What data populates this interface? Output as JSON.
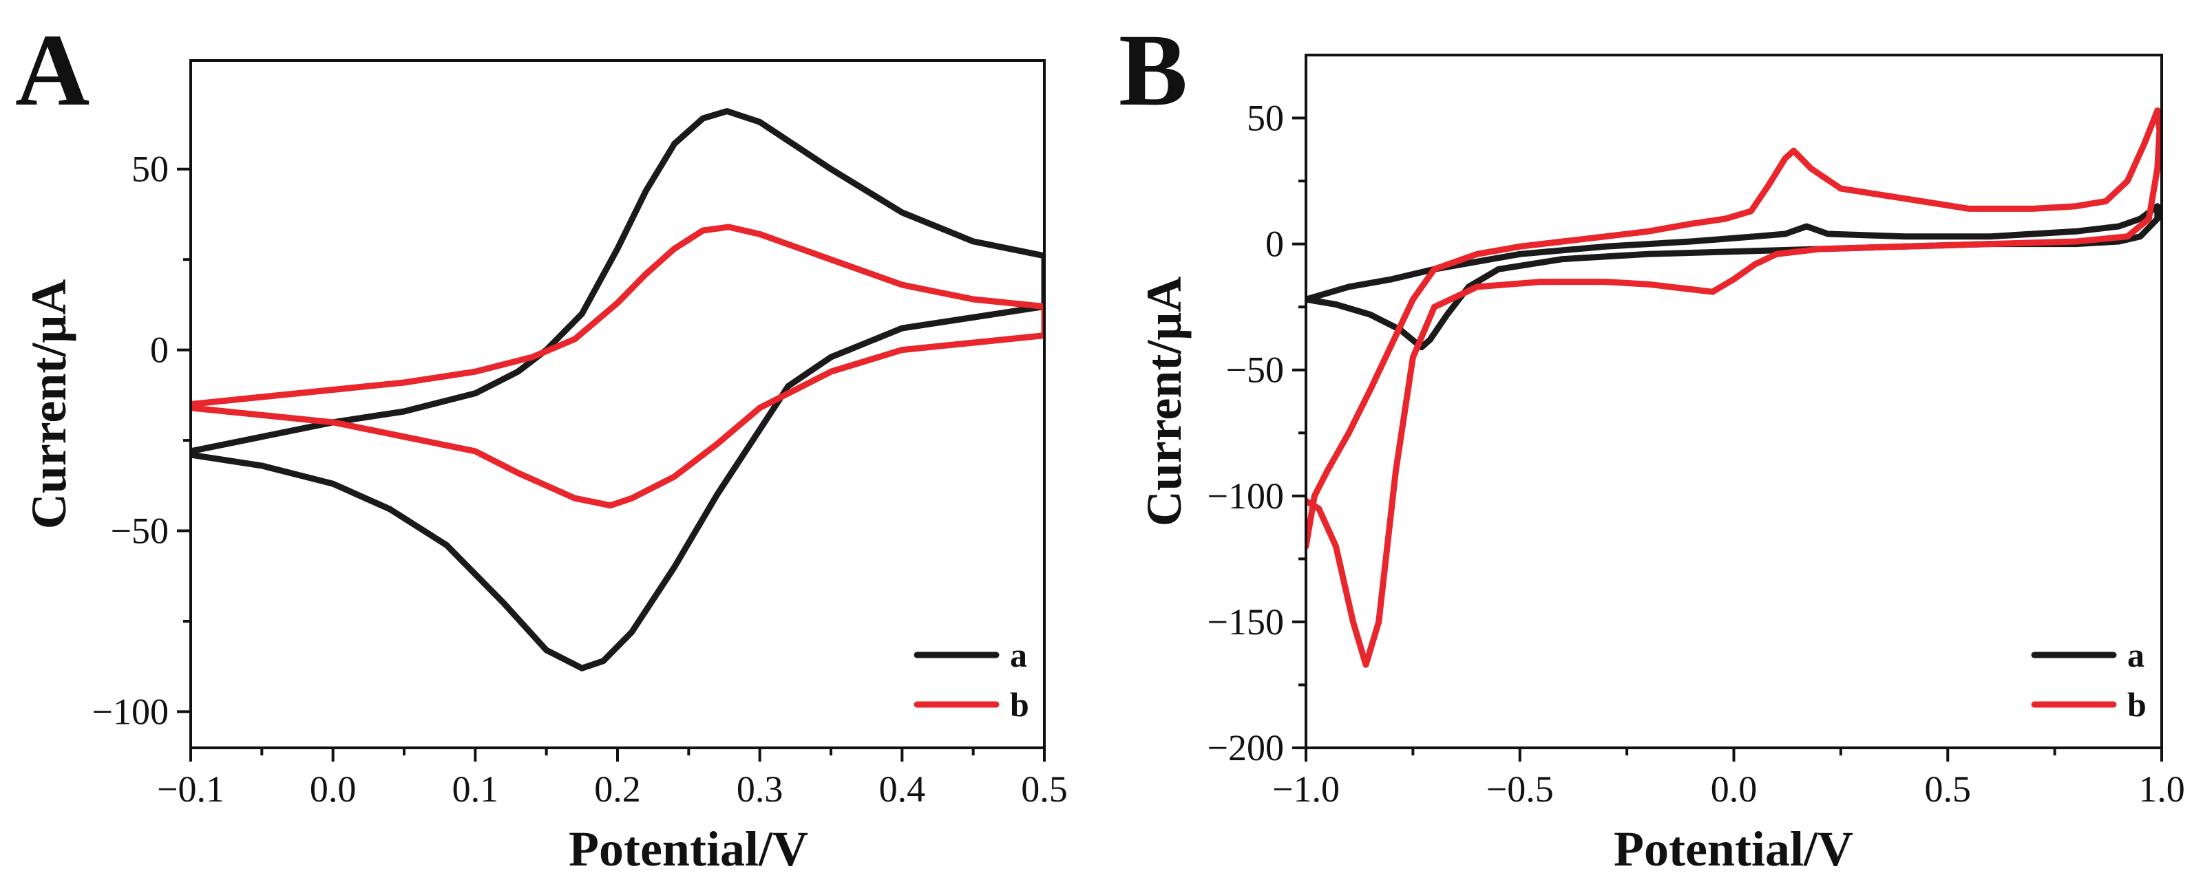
{
  "chart_data": [
    {
      "type": "line",
      "panel": "A",
      "title": "",
      "xlabel": "Potential/V",
      "ylabel": "Current/μA",
      "xlim": [
        -0.1,
        0.5
      ],
      "ylim": [
        -110,
        80
      ],
      "xticks": [
        -0.1,
        0.0,
        0.1,
        0.2,
        0.3,
        0.4,
        0.5
      ],
      "xtick_labels": [
        "−0.1",
        "0.0",
        "0.1",
        "0.2",
        "0.3",
        "0.4",
        "0.5"
      ],
      "yticks": [
        -100,
        -50,
        0,
        50
      ],
      "ytick_labels": [
        "−100",
        "−50",
        "0",
        "50"
      ],
      "legend": {
        "position": "bottom-right",
        "entries": [
          "a",
          "b"
        ]
      },
      "colors": {
        "a": "#1a1a1a",
        "b": "#e8262b"
      },
      "series": [
        {
          "name": "a",
          "points": [
            [
              -0.1,
              -28
            ],
            [
              0.0,
              -20
            ],
            [
              0.05,
              -17
            ],
            [
              0.1,
              -12
            ],
            [
              0.13,
              -6
            ],
            [
              0.15,
              0
            ],
            [
              0.175,
              10
            ],
            [
              0.2,
              28
            ],
            [
              0.22,
              44
            ],
            [
              0.24,
              57
            ],
            [
              0.26,
              64
            ],
            [
              0.277,
              66
            ],
            [
              0.3,
              63
            ],
            [
              0.35,
              50
            ],
            [
              0.4,
              38
            ],
            [
              0.45,
              30
            ],
            [
              0.5,
              26
            ],
            [
              0.5,
              12
            ],
            [
              0.45,
              9
            ],
            [
              0.4,
              6
            ],
            [
              0.35,
              -2
            ],
            [
              0.32,
              -10
            ],
            [
              0.3,
              -22
            ],
            [
              0.27,
              -40
            ],
            [
              0.24,
              -60
            ],
            [
              0.21,
              -78
            ],
            [
              0.19,
              -86
            ],
            [
              0.175,
              -88
            ],
            [
              0.15,
              -83
            ],
            [
              0.12,
              -70
            ],
            [
              0.08,
              -54
            ],
            [
              0.04,
              -44
            ],
            [
              0.0,
              -37
            ],
            [
              -0.05,
              -32
            ],
            [
              -0.1,
              -29
            ]
          ]
        },
        {
          "name": "b",
          "points": [
            [
              -0.1,
              -15
            ],
            [
              0.0,
              -11
            ],
            [
              0.05,
              -9
            ],
            [
              0.1,
              -6
            ],
            [
              0.14,
              -2
            ],
            [
              0.17,
              3
            ],
            [
              0.2,
              13
            ],
            [
              0.22,
              21
            ],
            [
              0.24,
              28
            ],
            [
              0.26,
              33
            ],
            [
              0.278,
              34
            ],
            [
              0.3,
              32
            ],
            [
              0.35,
              25
            ],
            [
              0.4,
              18
            ],
            [
              0.45,
              14
            ],
            [
              0.5,
              12
            ],
            [
              0.5,
              4
            ],
            [
              0.45,
              2
            ],
            [
              0.4,
              0
            ],
            [
              0.35,
              -6
            ],
            [
              0.3,
              -16
            ],
            [
              0.27,
              -26
            ],
            [
              0.24,
              -35
            ],
            [
              0.21,
              -41
            ],
            [
              0.195,
              -43
            ],
            [
              0.17,
              -41
            ],
            [
              0.13,
              -34
            ],
            [
              0.1,
              -28
            ],
            [
              0.05,
              -24
            ],
            [
              0.0,
              -20
            ],
            [
              -0.05,
              -18
            ],
            [
              -0.1,
              -16
            ]
          ]
        }
      ]
    },
    {
      "type": "line",
      "panel": "B",
      "title": "",
      "xlabel": "Potential/V",
      "ylabel": "Current/μA",
      "xlim": [
        -1.0,
        1.0
      ],
      "ylim": [
        -200,
        75
      ],
      "xticks": [
        -1.0,
        -0.5,
        0.0,
        0.5,
        1.0
      ],
      "xtick_labels": [
        "−1.0",
        "−0.5",
        "0.0",
        "0.5",
        "1.0"
      ],
      "yticks": [
        -200,
        -150,
        -100,
        -50,
        0,
        50
      ],
      "ytick_labels": [
        "−200",
        "−150",
        "−100",
        "−50",
        "0",
        "50"
      ],
      "legend": {
        "position": "bottom-right",
        "entries": [
          "a",
          "b"
        ]
      },
      "colors": {
        "a": "#1a1a1a",
        "b": "#e8262b"
      },
      "series": [
        {
          "name": "a",
          "points": [
            [
              -1.0,
              -22
            ],
            [
              -0.9,
              -17
            ],
            [
              -0.8,
              -14
            ],
            [
              -0.7,
              -10
            ],
            [
              -0.6,
              -7
            ],
            [
              -0.5,
              -4
            ],
            [
              -0.3,
              -1
            ],
            [
              -0.1,
              1
            ],
            [
              0.05,
              3
            ],
            [
              0.12,
              4
            ],
            [
              0.17,
              7
            ],
            [
              0.22,
              4
            ],
            [
              0.4,
              3
            ],
            [
              0.6,
              3
            ],
            [
              0.8,
              5
            ],
            [
              0.9,
              7
            ],
            [
              0.95,
              10
            ],
            [
              0.99,
              15
            ],
            [
              0.99,
              10
            ],
            [
              0.95,
              3
            ],
            [
              0.9,
              1
            ],
            [
              0.8,
              0
            ],
            [
              0.6,
              0
            ],
            [
              0.4,
              -1
            ],
            [
              0.2,
              -2
            ],
            [
              0.0,
              -3
            ],
            [
              -0.2,
              -4
            ],
            [
              -0.4,
              -6
            ],
            [
              -0.55,
              -10
            ],
            [
              -0.62,
              -17
            ],
            [
              -0.67,
              -28
            ],
            [
              -0.71,
              -38
            ],
            [
              -0.73,
              -41
            ],
            [
              -0.78,
              -34
            ],
            [
              -0.85,
              -28
            ],
            [
              -0.93,
              -24
            ],
            [
              -1.0,
              -22
            ]
          ]
        },
        {
          "name": "b",
          "points": [
            [
              -1.0,
              -120
            ],
            [
              -0.98,
              -100
            ],
            [
              -0.95,
              -90
            ],
            [
              -0.9,
              -75
            ],
            [
              -0.85,
              -58
            ],
            [
              -0.8,
              -40
            ],
            [
              -0.75,
              -22
            ],
            [
              -0.7,
              -10
            ],
            [
              -0.6,
              -4
            ],
            [
              -0.5,
              -1
            ],
            [
              -0.4,
              1
            ],
            [
              -0.3,
              3
            ],
            [
              -0.2,
              5
            ],
            [
              -0.1,
              8
            ],
            [
              -0.02,
              10
            ],
            [
              0.04,
              13
            ],
            [
              0.08,
              23
            ],
            [
              0.12,
              34
            ],
            [
              0.14,
              37
            ],
            [
              0.18,
              30
            ],
            [
              0.25,
              22
            ],
            [
              0.4,
              18
            ],
            [
              0.55,
              14
            ],
            [
              0.7,
              14
            ],
            [
              0.8,
              15
            ],
            [
              0.87,
              17
            ],
            [
              0.92,
              25
            ],
            [
              0.96,
              40
            ],
            [
              0.99,
              53
            ],
            [
              0.995,
              45
            ],
            [
              0.99,
              30
            ],
            [
              0.97,
              10
            ],
            [
              0.92,
              3
            ],
            [
              0.8,
              1
            ],
            [
              0.6,
              0
            ],
            [
              0.4,
              -1
            ],
            [
              0.2,
              -2
            ],
            [
              0.1,
              -4
            ],
            [
              0.05,
              -8
            ],
            [
              0.0,
              -14
            ],
            [
              -0.05,
              -19
            ],
            [
              -0.1,
              -18
            ],
            [
              -0.2,
              -16
            ],
            [
              -0.3,
              -15
            ],
            [
              -0.45,
              -15
            ],
            [
              -0.6,
              -17
            ],
            [
              -0.7,
              -25
            ],
            [
              -0.75,
              -45
            ],
            [
              -0.79,
              -90
            ],
            [
              -0.83,
              -150
            ],
            [
              -0.86,
              -167
            ],
            [
              -0.89,
              -150
            ],
            [
              -0.93,
              -120
            ],
            [
              -0.97,
              -105
            ],
            [
              -1.0,
              -102
            ]
          ]
        }
      ]
    }
  ]
}
